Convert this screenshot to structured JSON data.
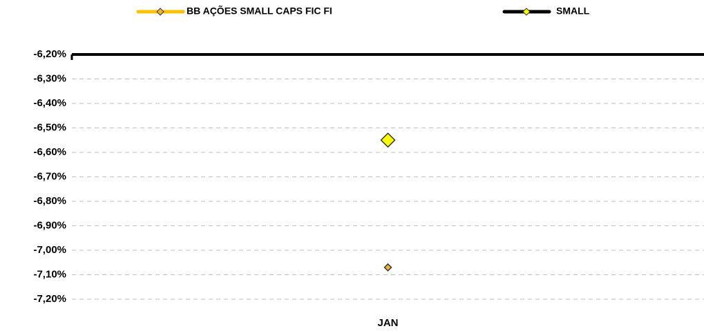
{
  "chart_data": {
    "type": "line",
    "categories": [
      "JAN"
    ],
    "series": [
      {
        "name": "BB AÇÕES SMALL CAPS FIC FI",
        "color": "#FFC000",
        "marker_color": "#F5B335",
        "values": [
          -7.07
        ]
      },
      {
        "name": "SMALL",
        "color": "#000000",
        "marker_color": "#FFFF00",
        "values": [
          -6.55
        ]
      }
    ],
    "ylim": [
      -7.2,
      -6.2
    ],
    "yticks": [
      {
        "value": -6.2,
        "label": "-6,20%"
      },
      {
        "value": -6.3,
        "label": "-6,30%"
      },
      {
        "value": -6.4,
        "label": "-6,40%"
      },
      {
        "value": -6.5,
        "label": "-6,50%"
      },
      {
        "value": -6.6,
        "label": "-6,60%"
      },
      {
        "value": -6.7,
        "label": "-6,70%"
      },
      {
        "value": -6.8,
        "label": "-6,80%"
      },
      {
        "value": -6.9,
        "label": "-6,90%"
      },
      {
        "value": -7.0,
        "label": "-7,00%"
      },
      {
        "value": -7.1,
        "label": "-7,10%"
      },
      {
        "value": -7.2,
        "label": "-7,20%"
      }
    ],
    "grid": true,
    "legend": "top"
  }
}
